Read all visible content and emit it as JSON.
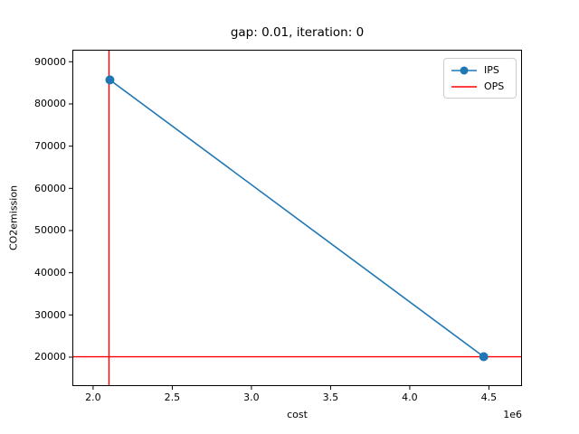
{
  "colors": {
    "ips_blue": "#1f77b4",
    "ops_red": "#ff0000",
    "axis": "#000000",
    "legend_border": "#cccccc",
    "background": "#ffffff"
  },
  "chart_data": {
    "type": "line",
    "title": "gap: 0.01, iteration: 0",
    "xlabel": "cost",
    "ylabel": "CO2emission",
    "x_offset_label": "1e6",
    "xlim": [
      1869000,
      4709000
    ],
    "ylim": [
      13140,
      92850
    ],
    "grid": false,
    "legend_position": "upper right",
    "xticks": {
      "values": [
        2000000,
        2500000,
        3000000,
        3500000,
        4000000,
        4500000
      ],
      "labels": [
        "2.0",
        "2.5",
        "3.0",
        "3.5",
        "4.0",
        "4.5"
      ]
    },
    "yticks": {
      "values": [
        20000,
        30000,
        40000,
        50000,
        60000,
        70000,
        80000,
        90000
      ],
      "labels": [
        "20000",
        "30000",
        "40000",
        "50000",
        "60000",
        "70000",
        "80000",
        "90000"
      ]
    },
    "series": [
      {
        "name": "IPS",
        "style": "line-with-circle-markers",
        "color": "#1f77b4",
        "points": [
          [
            2106000,
            85700
          ],
          [
            4467000,
            20100
          ]
        ]
      },
      {
        "name": "OPS",
        "style": "reference-lines",
        "color": "#ff0000",
        "vline_x": 2100000,
        "hline_y": 20100
      }
    ]
  }
}
